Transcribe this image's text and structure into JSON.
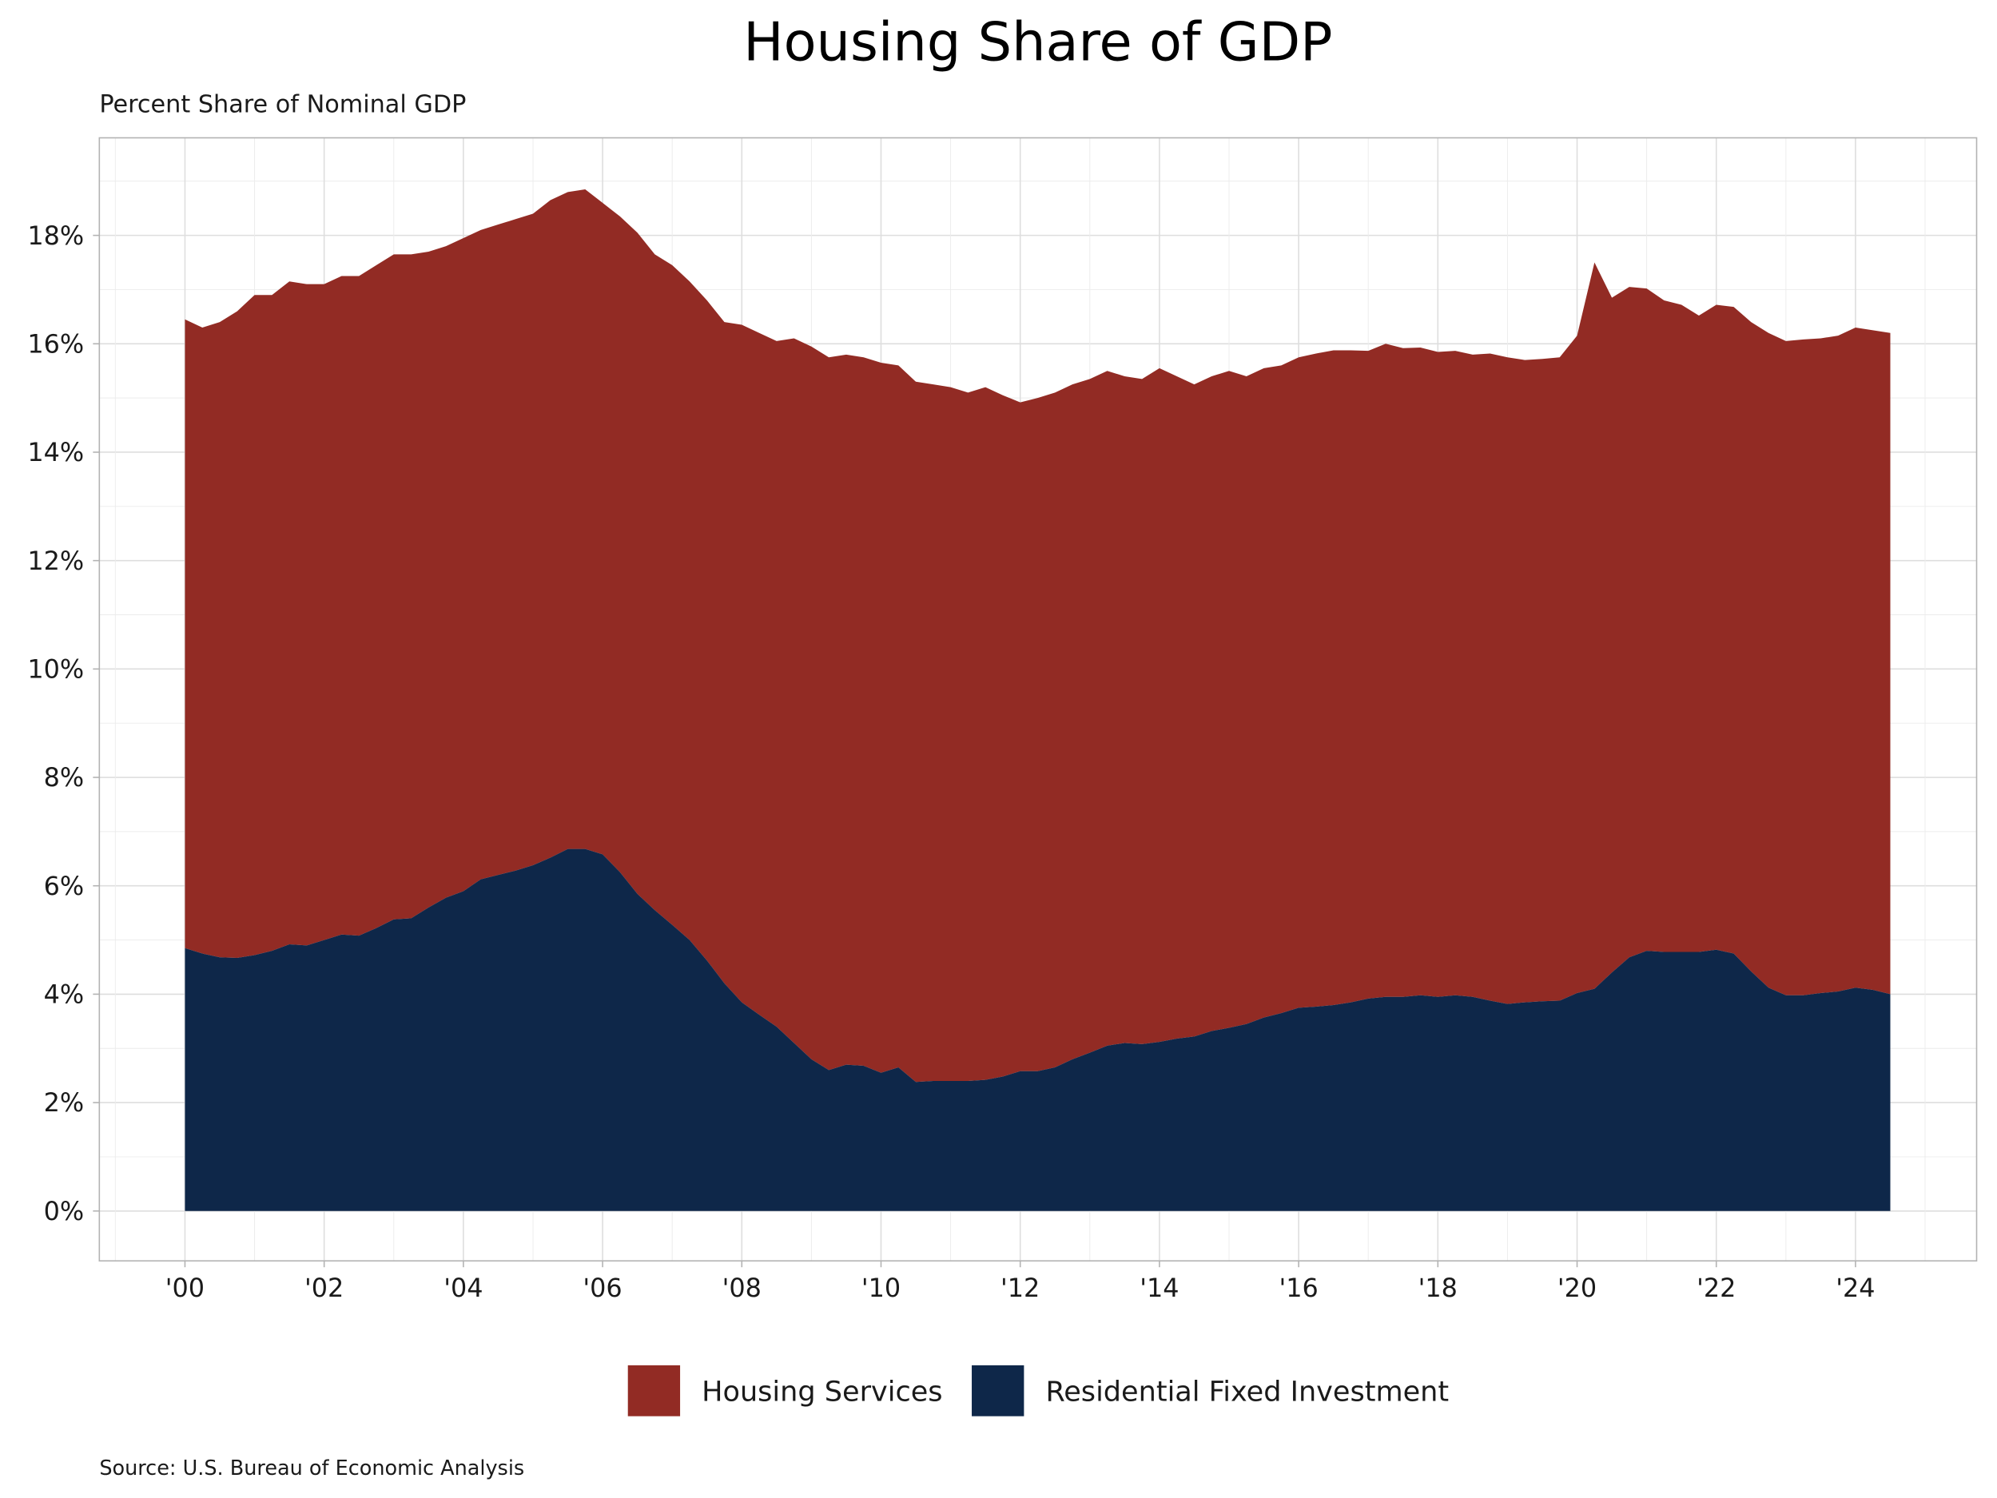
{
  "chart_data": {
    "type": "area",
    "stacked": true,
    "title": "Housing Share of GDP",
    "subtitle": "Percent Share of Nominal GDP",
    "xlabel": "",
    "ylabel": "",
    "source": "Source: U.S. Bureau of Economic Analysis",
    "frequency": "quarterly",
    "x_start": "2000Q1",
    "x_end": "2024Q3",
    "xlim": [
      1998.77,
      2025.74
    ],
    "ylim": [
      -0.92,
      19.8
    ],
    "grid": true,
    "legend_position": "bottom",
    "x_ticks": [
      2000,
      2002,
      2004,
      2006,
      2008,
      2010,
      2012,
      2014,
      2016,
      2018,
      2020,
      2022,
      2024
    ],
    "x_tick_labels": [
      "'00",
      "'02",
      "'04",
      "'06",
      "'08",
      "'10",
      "'12",
      "'14",
      "'16",
      "'18",
      "'20",
      "'22",
      "'24"
    ],
    "y_ticks": [
      0,
      2,
      4,
      6,
      8,
      10,
      12,
      14,
      16,
      18
    ],
    "y_tick_labels": [
      "0%",
      "2%",
      "4%",
      "6%",
      "8%",
      "10%",
      "12%",
      "14%",
      "16%",
      "18%"
    ],
    "series": [
      {
        "name": "Residential Fixed Investment",
        "color": "#0e2749",
        "values": [
          4.85,
          4.75,
          4.68,
          4.67,
          4.72,
          4.8,
          4.92,
          4.9,
          5.0,
          5.1,
          5.08,
          5.22,
          5.38,
          5.4,
          5.6,
          5.78,
          5.9,
          6.12,
          6.2,
          6.28,
          6.38,
          6.52,
          6.68,
          6.68,
          6.58,
          6.25,
          5.85,
          5.55,
          5.28,
          5.0,
          4.62,
          4.2,
          3.85,
          3.62,
          3.4,
          3.1,
          2.8,
          2.6,
          2.7,
          2.68,
          2.55,
          2.65,
          2.38,
          2.4,
          2.4,
          2.4,
          2.42,
          2.48,
          2.58,
          2.58,
          2.65,
          2.8,
          2.92,
          3.05,
          3.1,
          3.08,
          3.12,
          3.18,
          3.22,
          3.32,
          3.38,
          3.45,
          3.57,
          3.65,
          3.75,
          3.77,
          3.8,
          3.85,
          3.92,
          3.95,
          3.95,
          3.98,
          3.95,
          3.98,
          3.95,
          3.88,
          3.82,
          3.85,
          3.87,
          3.88,
          4.02,
          4.1,
          4.4,
          4.68,
          4.8,
          4.78,
          4.78,
          4.78,
          4.82,
          4.75,
          4.42,
          4.12,
          3.98,
          3.98,
          4.02,
          4.05,
          4.12,
          4.08,
          4.0
        ]
      },
      {
        "name": "Housing Services",
        "color": "#922b24",
        "values": [
          11.6,
          11.55,
          11.72,
          11.93,
          12.18,
          12.1,
          12.23,
          12.2,
          12.1,
          12.15,
          12.17,
          12.23,
          12.27,
          12.25,
          12.1,
          12.02,
          12.05,
          11.98,
          12.0,
          12.02,
          12.02,
          12.13,
          12.12,
          12.17,
          12.02,
          12.1,
          12.2,
          12.1,
          12.17,
          12.15,
          12.18,
          12.2,
          12.5,
          12.58,
          12.65,
          13.0,
          13.15,
          13.15,
          13.1,
          13.07,
          13.1,
          12.95,
          12.92,
          12.85,
          12.8,
          12.7,
          12.78,
          12.57,
          12.34,
          12.42,
          12.45,
          12.45,
          12.43,
          12.45,
          12.3,
          12.27,
          12.43,
          12.22,
          12.03,
          12.08,
          12.12,
          11.95,
          11.98,
          11.95,
          12.0,
          12.05,
          12.08,
          12.03,
          11.95,
          12.05,
          11.97,
          11.95,
          11.9,
          11.89,
          11.85,
          11.94,
          11.93,
          11.85,
          11.85,
          11.87,
          12.13,
          13.4,
          12.45,
          12.37,
          12.22,
          12.02,
          11.94,
          11.74,
          11.9,
          11.93,
          11.98,
          12.08,
          12.07,
          12.1,
          12.08,
          12.1,
          12.18,
          12.17,
          12.2
        ]
      }
    ],
    "legend": [
      "Housing Services",
      "Residential Fixed Investment"
    ]
  }
}
